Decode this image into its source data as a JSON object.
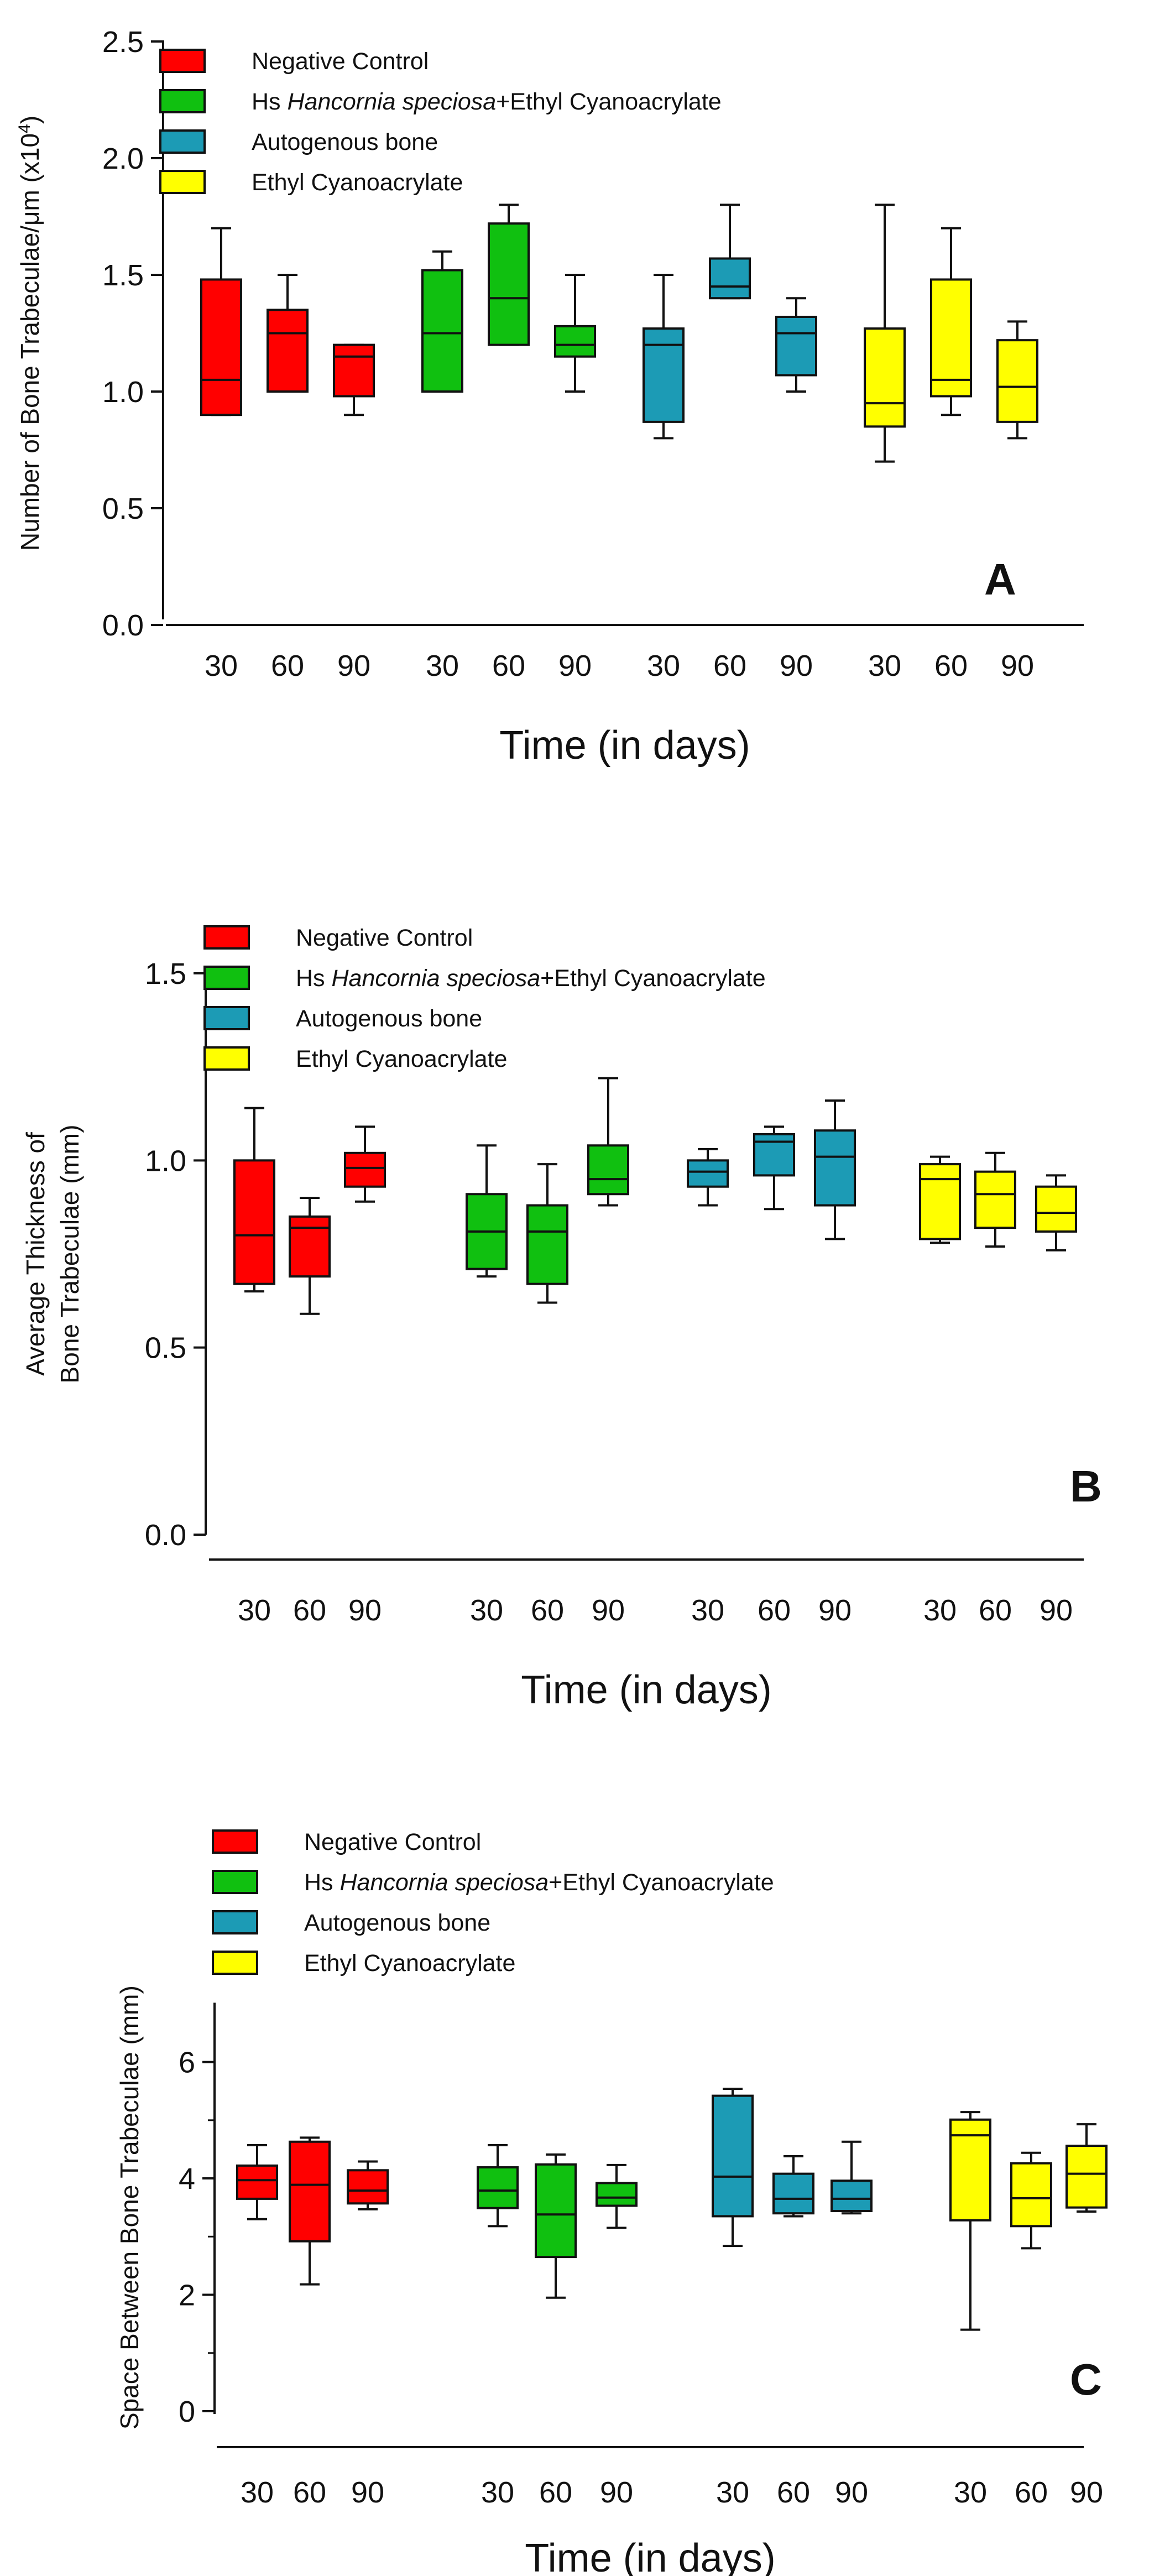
{
  "colors": {
    "negative_control": "#ff0000",
    "hs_ec": "#10c010",
    "autogenous": "#1c9bb5",
    "ethyl_cyanoacrylate": "#ffff00",
    "stroke": "#111111"
  },
  "legend": [
    {
      "parts": [
        {
          "text": "Negative Control",
          "italic": false
        }
      ],
      "color": "#ff0000"
    },
    {
      "parts": [
        {
          "text": "Hs ",
          "italic": false
        },
        {
          "text": "Hancornia speciosa",
          "italic": true
        },
        {
          "text": "+Ethyl Cyanoacrylate",
          "italic": false
        }
      ],
      "color": "#10c010"
    },
    {
      "parts": [
        {
          "text": "Autogenous bone",
          "italic": false
        }
      ],
      "color": "#1c9bb5"
    },
    {
      "parts": [
        {
          "text": "Ethyl Cyanoacrylate",
          "italic": false
        }
      ],
      "color": "#ffff00"
    }
  ],
  "chart_data": [
    {
      "type": "box",
      "panel_letter": "A",
      "ylabel_parts": [
        {
          "text": "Number of Bone Trabeculae/μm (x10",
          "sup": false
        },
        {
          "text": "4",
          "sup": true
        },
        {
          "text": ")",
          "sup": false
        }
      ],
      "xlabel": "Time (in days)",
      "ylim": [
        0,
        2.5
      ],
      "yticks": [
        0.0,
        0.5,
        1.0,
        1.5,
        2.0,
        2.5
      ],
      "ytick_labels": [
        "0.0",
        "0.5",
        "1.0",
        "1.5",
        "2.0",
        "2.5"
      ],
      "time_labels": [
        "30",
        "60",
        "90"
      ],
      "groups": [
        {
          "name": "Negative Control",
          "boxes": [
            {
              "time": "30",
              "min": 0.9,
              "q1": 0.9,
              "median": 1.05,
              "q3": 1.48,
              "max": 1.7
            },
            {
              "time": "60",
              "min": 1.0,
              "q1": 1.0,
              "median": 1.25,
              "q3": 1.35,
              "max": 1.5
            },
            {
              "time": "90",
              "min": 0.9,
              "q1": 0.98,
              "median": 1.15,
              "q3": 1.2,
              "max": 1.2
            }
          ]
        },
        {
          "name": "Hs Hancornia speciosa+Ethyl Cyanoacrylate",
          "boxes": [
            {
              "time": "30",
              "min": 1.0,
              "q1": 1.0,
              "median": 1.25,
              "q3": 1.52,
              "max": 1.6
            },
            {
              "time": "60",
              "min": 1.2,
              "q1": 1.2,
              "median": 1.4,
              "q3": 1.72,
              "max": 1.8
            },
            {
              "time": "90",
              "min": 1.0,
              "q1": 1.15,
              "median": 1.2,
              "q3": 1.28,
              "max": 1.5
            }
          ]
        },
        {
          "name": "Autogenous bone",
          "boxes": [
            {
              "time": "30",
              "min": 0.8,
              "q1": 0.87,
              "median": 1.2,
              "q3": 1.27,
              "max": 1.5
            },
            {
              "time": "60",
              "min": 1.4,
              "q1": 1.4,
              "median": 1.45,
              "q3": 1.57,
              "max": 1.8
            },
            {
              "time": "90",
              "min": 1.0,
              "q1": 1.07,
              "median": 1.25,
              "q3": 1.32,
              "max": 1.4
            }
          ]
        },
        {
          "name": "Ethyl Cyanoacrylate",
          "boxes": [
            {
              "time": "30",
              "min": 0.7,
              "q1": 0.85,
              "median": 0.95,
              "q3": 1.27,
              "max": 1.8
            },
            {
              "time": "60",
              "min": 0.9,
              "q1": 0.98,
              "median": 1.05,
              "q3": 1.48,
              "max": 1.7
            },
            {
              "time": "90",
              "min": 0.8,
              "q1": 0.87,
              "median": 1.02,
              "q3": 1.22,
              "max": 1.3
            }
          ]
        }
      ]
    },
    {
      "type": "box",
      "panel_letter": "B",
      "ylabel_parts": [
        {
          "text": "Average Thickness of",
          "sup": false
        }
      ],
      "ylabel_line2": "Bone Trabeculae (mm)",
      "xlabel": "Time (in days)",
      "ylim": [
        0,
        1.5
      ],
      "yticks": [
        0.0,
        0.5,
        1.0,
        1.5
      ],
      "ytick_labels": [
        "0.0",
        "0.5",
        "1.0",
        "1.5"
      ],
      "time_labels": [
        "30",
        "60",
        "90"
      ],
      "groups": [
        {
          "name": "Negative Control",
          "boxes": [
            {
              "time": "30",
              "min": 0.65,
              "q1": 0.67,
              "median": 0.8,
              "q3": 1.0,
              "max": 1.14
            },
            {
              "time": "60",
              "min": 0.59,
              "q1": 0.69,
              "median": 0.82,
              "q3": 0.85,
              "max": 0.9
            },
            {
              "time": "90",
              "min": 0.89,
              "q1": 0.93,
              "median": 0.98,
              "q3": 1.02,
              "max": 1.09
            }
          ]
        },
        {
          "name": "Hs Hancornia speciosa+Ethyl Cyanoacrylate",
          "boxes": [
            {
              "time": "30",
              "min": 0.69,
              "q1": 0.71,
              "median": 0.81,
              "q3": 0.91,
              "max": 1.04
            },
            {
              "time": "60",
              "min": 0.62,
              "q1": 0.67,
              "median": 0.81,
              "q3": 0.88,
              "max": 0.99
            },
            {
              "time": "90",
              "min": 0.88,
              "q1": 0.91,
              "median": 0.95,
              "q3": 1.04,
              "max": 1.22
            }
          ]
        },
        {
          "name": "Autogenous bone",
          "boxes": [
            {
              "time": "30",
              "min": 0.88,
              "q1": 0.93,
              "median": 0.97,
              "q3": 1.0,
              "max": 1.03
            },
            {
              "time": "60",
              "min": 0.87,
              "q1": 0.96,
              "median": 1.05,
              "q3": 1.07,
              "max": 1.09
            },
            {
              "time": "90",
              "min": 0.79,
              "q1": 0.88,
              "median": 1.01,
              "q3": 1.08,
              "max": 1.16
            }
          ]
        },
        {
          "name": "Ethyl Cyanoacrylate",
          "boxes": [
            {
              "time": "30",
              "min": 0.78,
              "q1": 0.79,
              "median": 0.95,
              "q3": 0.99,
              "max": 1.01
            },
            {
              "time": "60",
              "min": 0.77,
              "q1": 0.82,
              "median": 0.91,
              "q3": 0.97,
              "max": 1.02
            },
            {
              "time": "90",
              "min": 0.76,
              "q1": 0.81,
              "median": 0.86,
              "q3": 0.93,
              "max": 0.96
            }
          ]
        }
      ]
    },
    {
      "type": "box",
      "panel_letter": "C",
      "ylabel_parts": [
        {
          "text": "Space Between Bone Trabeculae (mm)",
          "sup": false
        }
      ],
      "xlabel": "Time (in days)",
      "ylim": [
        0,
        7
      ],
      "yticks": [
        0,
        2,
        4,
        6
      ],
      "ytick_labels": [
        "0",
        "2",
        "4",
        "6"
      ],
      "time_labels": [
        "30",
        "60",
        "90"
      ],
      "groups": [
        {
          "name": "Negative Control",
          "boxes": [
            {
              "time": "30",
              "min": 3.3,
              "q1": 3.65,
              "median": 3.97,
              "q3": 4.22,
              "max": 4.57
            },
            {
              "time": "60",
              "min": 2.18,
              "q1": 2.92,
              "median": 3.89,
              "q3": 4.63,
              "max": 4.7
            },
            {
              "time": "90",
              "min": 3.47,
              "q1": 3.57,
              "median": 3.79,
              "q3": 4.14,
              "max": 4.29
            }
          ]
        },
        {
          "name": "Hs Hancornia speciosa+Ethyl Cyanoacrylate",
          "boxes": [
            {
              "time": "30",
              "min": 3.18,
              "q1": 3.49,
              "median": 3.79,
              "q3": 4.19,
              "max": 4.57
            },
            {
              "time": "60",
              "min": 1.95,
              "q1": 2.65,
              "median": 3.38,
              "q3": 4.24,
              "max": 4.41
            },
            {
              "time": "90",
              "min": 3.15,
              "q1": 3.53,
              "median": 3.67,
              "q3": 3.92,
              "max": 4.23
            }
          ]
        },
        {
          "name": "Autogenous bone",
          "boxes": [
            {
              "time": "30",
              "min": 2.84,
              "q1": 3.35,
              "median": 4.03,
              "q3": 5.42,
              "max": 5.54
            },
            {
              "time": "60",
              "min": 3.35,
              "q1": 3.4,
              "median": 3.65,
              "q3": 4.08,
              "max": 4.38
            },
            {
              "time": "90",
              "min": 3.4,
              "q1": 3.44,
              "median": 3.65,
              "q3": 3.96,
              "max": 4.63
            }
          ]
        },
        {
          "name": "Ethyl Cyanoacrylate",
          "boxes": [
            {
              "time": "30",
              "min": 1.4,
              "q1": 3.28,
              "median": 4.74,
              "q3": 5.01,
              "max": 5.14
            },
            {
              "time": "60",
              "min": 2.8,
              "q1": 3.18,
              "median": 3.66,
              "q3": 4.26,
              "max": 4.44
            },
            {
              "time": "90",
              "min": 3.43,
              "q1": 3.5,
              "median": 4.08,
              "q3": 4.56,
              "max": 4.93
            }
          ]
        }
      ]
    }
  ]
}
